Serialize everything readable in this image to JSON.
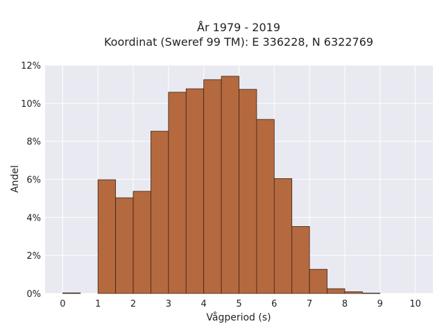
{
  "chart_data": {
    "type": "bar",
    "title_lines": [
      "År 1979 - 2019",
      "Koordinat (Sweref 99 TM): E 336228, N 6322769"
    ],
    "xlabel": "Vågperiod (s)",
    "ylabel": "Andel",
    "xlim": [
      -0.5,
      10.5
    ],
    "ylim": [
      0,
      0.12
    ],
    "bin_width": 0.5,
    "x_ticks": [
      0,
      1,
      2,
      3,
      4,
      5,
      6,
      7,
      8,
      9,
      10
    ],
    "x_tick_labels": [
      "0",
      "1",
      "2",
      "3",
      "4",
      "5",
      "6",
      "7",
      "8",
      "9",
      "10"
    ],
    "y_ticks": [
      0,
      0.02,
      0.04,
      0.06,
      0.08,
      0.1,
      0.12
    ],
    "y_tick_labels": [
      "0%",
      "2%",
      "4%",
      "6%",
      "8%",
      "10%",
      "12%"
    ],
    "grid": true,
    "bins": [
      {
        "start": 0.0,
        "value": 0.0003
      },
      {
        "start": 0.5,
        "value": 0.0
      },
      {
        "start": 1.0,
        "value": 0.0598
      },
      {
        "start": 1.5,
        "value": 0.0503
      },
      {
        "start": 2.0,
        "value": 0.0537
      },
      {
        "start": 2.5,
        "value": 0.0853
      },
      {
        "start": 3.0,
        "value": 0.1058
      },
      {
        "start": 3.5,
        "value": 0.1076
      },
      {
        "start": 4.0,
        "value": 0.1124
      },
      {
        "start": 4.5,
        "value": 0.1142
      },
      {
        "start": 5.0,
        "value": 0.1073
      },
      {
        "start": 5.5,
        "value": 0.0915
      },
      {
        "start": 6.0,
        "value": 0.0604
      },
      {
        "start": 6.5,
        "value": 0.0352
      },
      {
        "start": 7.0,
        "value": 0.0127
      },
      {
        "start": 7.5,
        "value": 0.0025
      },
      {
        "start": 8.0,
        "value": 0.0009
      },
      {
        "start": 8.5,
        "value": 0.0002
      },
      {
        "start": 9.0,
        "value": 0.0
      },
      {
        "start": 9.5,
        "value": 0.0
      }
    ],
    "colors": {
      "bar_fill": "#b5693f",
      "bar_edge": "#3a2316",
      "plot_background": "#e9e9f1",
      "grid": "#ffffff"
    }
  }
}
